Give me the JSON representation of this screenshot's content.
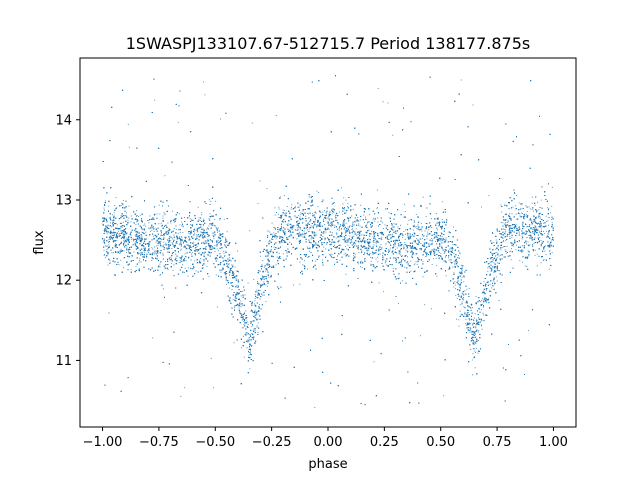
{
  "chart_data": {
    "type": "scatter",
    "title": "1SWASPJ133107.67-512715.7 Period 138177.875s",
    "xlabel": "phase",
    "ylabel": "flux",
    "xlim": [
      -1.1,
      1.1
    ],
    "ylim": [
      10.17,
      14.77
    ],
    "xticks": [
      -1.0,
      -0.75,
      -0.5,
      -0.25,
      0.0,
      0.25,
      0.5,
      0.75,
      1.0
    ],
    "xtick_labels": [
      "−1.00",
      "−0.75",
      "−0.50",
      "−0.25",
      "0.00",
      "0.25",
      "0.50",
      "0.75",
      "1.00"
    ],
    "yticks": [
      11,
      12,
      13,
      14
    ],
    "ytick_labels": [
      "11",
      "12",
      "13",
      "14"
    ],
    "grid": false,
    "marker_color": "#1f77b4",
    "series": [
      {
        "phase_range": [
          -1.0,
          1.0
        ],
        "baseline_flux": 12.55,
        "baseline_scatter": 0.2,
        "outlier_range": [
          10.4,
          14.6
        ],
        "eclipses": [
          {
            "phase": -0.35,
            "min_flux": 11.2
          },
          {
            "phase": 0.65,
            "min_flux": 11.2
          }
        ]
      }
    ]
  }
}
